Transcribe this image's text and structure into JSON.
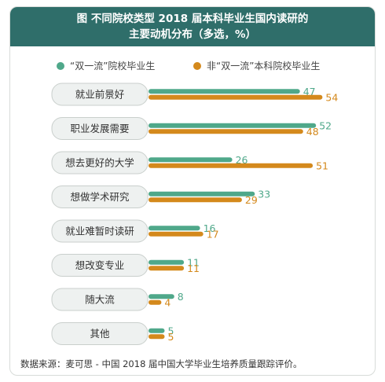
{
  "chart_data": {
    "type": "bar",
    "title_line1": "图  不同院校类型 2018 届本科毕业生国内读研的",
    "title_line2": "主要动机分布（多选，%）",
    "categories": [
      "就业前景好",
      "职业发展需要",
      "想去更好的大学",
      "想做学术研究",
      "就业难暂时读研",
      "想改变专业",
      "随大流",
      "其他"
    ],
    "series": [
      {
        "name": "“双一流”院校毕业生",
        "color": "#4fa88a",
        "values": [
          47,
          52,
          26,
          33,
          16,
          11,
          8,
          5
        ]
      },
      {
        "name": "非“双一流”本科院校毕业生",
        "color": "#d4891c",
        "values": [
          54,
          48,
          51,
          29,
          17,
          11,
          4,
          5
        ]
      }
    ],
    "xlim": [
      0,
      60
    ],
    "legend_position": "top",
    "source": "数据来源：麦可思 - 中国 2018 届中国大学毕业生培养质量跟踪评价。"
  },
  "colors": {
    "header_bg": "#2f6e6a",
    "label_box_bg": "#eef1f0",
    "series1": "#4fa88a",
    "series2": "#d4891c"
  }
}
